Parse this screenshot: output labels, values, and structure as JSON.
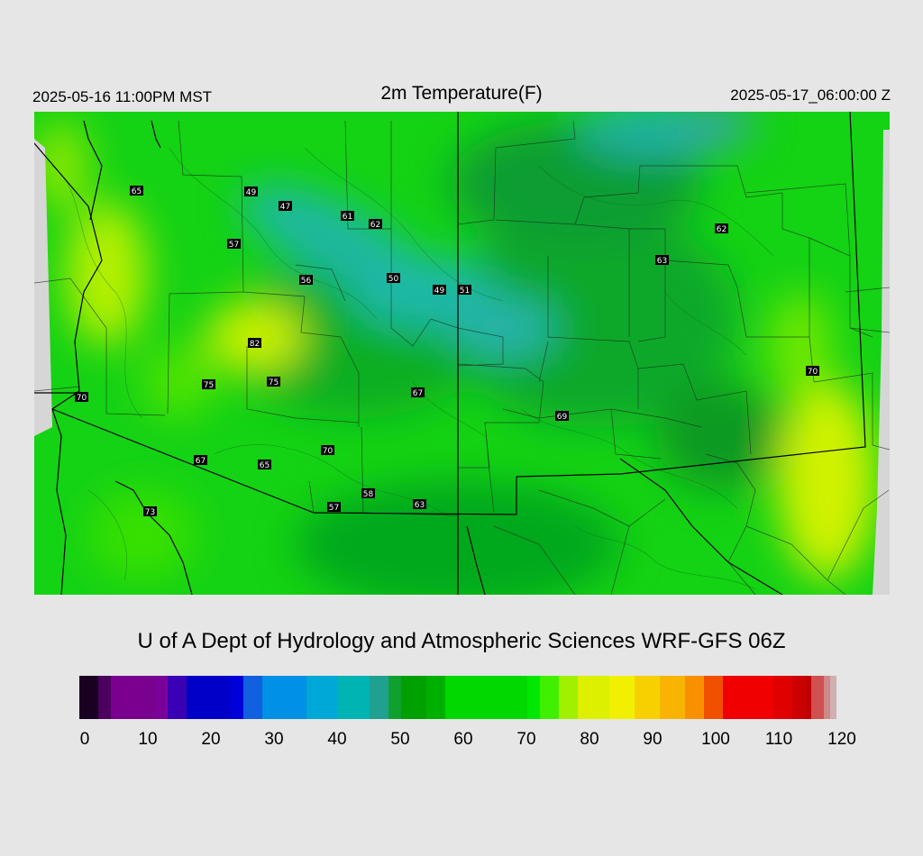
{
  "header": {
    "valid_local": "2025-05-16 11:00PM MST",
    "title": "2m Temperature(F)",
    "valid_utc": "2025-05-17_06:00:00 Z"
  },
  "credit": "U of A Dept of Hydrology and Atmospheric Sciences WRF-GFS 06Z",
  "stations": [
    {
      "name": "station-65-nw",
      "value": "65"
    },
    {
      "name": "station-49-north",
      "value": "49"
    },
    {
      "name": "station-47",
      "value": "47"
    },
    {
      "name": "station-61",
      "value": "61"
    },
    {
      "name": "station-62-north",
      "value": "62"
    },
    {
      "name": "station-57-north",
      "value": "57"
    },
    {
      "name": "station-56",
      "value": "56"
    },
    {
      "name": "station-50",
      "value": "50"
    },
    {
      "name": "station-49-east",
      "value": "49"
    },
    {
      "name": "station-51",
      "value": "51"
    },
    {
      "name": "station-62-east",
      "value": "62"
    },
    {
      "name": "station-63-east",
      "value": "63"
    },
    {
      "name": "station-82",
      "value": "82"
    },
    {
      "name": "station-75-west",
      "value": "75"
    },
    {
      "name": "station-75-east",
      "value": "75"
    },
    {
      "name": "station-67-central",
      "value": "67"
    },
    {
      "name": "station-70-west",
      "value": "70"
    },
    {
      "name": "station-70-east",
      "value": "70"
    },
    {
      "name": "station-69",
      "value": "69"
    },
    {
      "name": "station-70-south",
      "value": "70"
    },
    {
      "name": "station-67-sw",
      "value": "67"
    },
    {
      "name": "station-65-south",
      "value": "65"
    },
    {
      "name": "station-58",
      "value": "58"
    },
    {
      "name": "station-57-south",
      "value": "57"
    },
    {
      "name": "station-63-south",
      "value": "63"
    },
    {
      "name": "station-73",
      "value": "73"
    }
  ],
  "colorbar": {
    "min": 0,
    "max": 120,
    "ticks": [
      "0",
      "10",
      "20",
      "30",
      "40",
      "50",
      "60",
      "70",
      "80",
      "90",
      "100",
      "110",
      "120"
    ],
    "stops": [
      {
        "v": 0,
        "c": "#1a0022"
      },
      {
        "v": 3,
        "c": "#4b005e"
      },
      {
        "v": 5,
        "c": "#7a0090"
      },
      {
        "v": 12,
        "c": "#7a009a"
      },
      {
        "v": 14,
        "c": "#3a00b4"
      },
      {
        "v": 17,
        "c": "#0000c8"
      },
      {
        "v": 24,
        "c": "#0000d8"
      },
      {
        "v": 26,
        "c": "#1060e0"
      },
      {
        "v": 29,
        "c": "#0090e6"
      },
      {
        "v": 36,
        "c": "#00a8d8"
      },
      {
        "v": 41,
        "c": "#00b4b4"
      },
      {
        "v": 46,
        "c": "#20a090"
      },
      {
        "v": 49,
        "c": "#10a030"
      },
      {
        "v": 51,
        "c": "#00a000"
      },
      {
        "v": 55,
        "c": "#00b000"
      },
      {
        "v": 58,
        "c": "#00d800"
      },
      {
        "v": 71,
        "c": "#00e800"
      },
      {
        "v": 73,
        "c": "#40f000"
      },
      {
        "v": 76,
        "c": "#a0f000"
      },
      {
        "v": 79,
        "c": "#dcf000"
      },
      {
        "v": 84,
        "c": "#f0f000"
      },
      {
        "v": 88,
        "c": "#f8d000"
      },
      {
        "v": 92,
        "c": "#f8b400"
      },
      {
        "v": 96,
        "c": "#f89000"
      },
      {
        "v": 99,
        "c": "#f05000"
      },
      {
        "v": 102,
        "c": "#f00000"
      },
      {
        "v": 110,
        "c": "#e00000"
      },
      {
        "v": 113,
        "c": "#cc0000"
      },
      {
        "v": 115,
        "c": "#c00000"
      },
      {
        "v": 116,
        "c": "#d05050"
      },
      {
        "v": 118,
        "c": "#d08888"
      },
      {
        "v": 119,
        "c": "#d0b0b0"
      },
      {
        "v": 120,
        "c": "#d0d0d0"
      }
    ]
  }
}
